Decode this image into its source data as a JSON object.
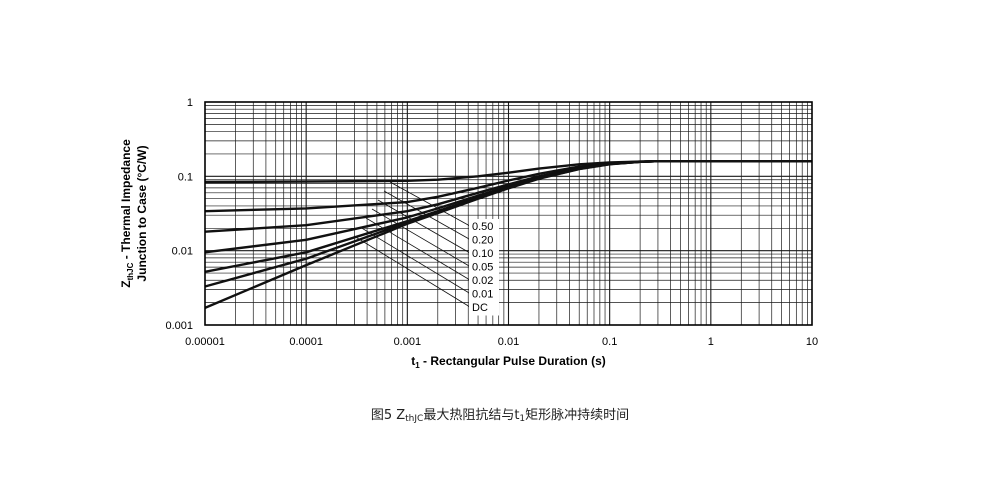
{
  "chart_data": {
    "type": "line",
    "title": "",
    "x_scale": "log",
    "y_scale": "log",
    "xlim": [
      1e-05,
      10
    ],
    "ylim": [
      0.001,
      1
    ],
    "xlabel": {
      "prefix": "t",
      "sub": "1",
      "suffix": " - Rectangular Pulse Duration (s)"
    },
    "ylabel_line1": {
      "prefix": "Z",
      "sub": "thJC",
      "suffix": " - Thermal Impedance"
    },
    "ylabel_line2": "Junction to Case (°C/W)",
    "x_ticks": [
      {
        "value": 1e-05,
        "label": "0.00001"
      },
      {
        "value": 0.0001,
        "label": "0.0001"
      },
      {
        "value": 0.001,
        "label": "0.001"
      },
      {
        "value": 0.01,
        "label": "0.01"
      },
      {
        "value": 0.1,
        "label": "0.1"
      },
      {
        "value": 1,
        "label": "1"
      },
      {
        "value": 10,
        "label": "10"
      }
    ],
    "y_ticks": [
      {
        "value": 0.001,
        "label": "0.001"
      },
      {
        "value": 0.01,
        "label": "0.01"
      },
      {
        "value": 0.1,
        "label": "0.1"
      },
      {
        "value": 1,
        "label": "1"
      }
    ],
    "grid": true,
    "legend_placement": "center",
    "series": [
      {
        "name": "0.50",
        "x": [
          1e-05,
          0.0001,
          0.001,
          0.002,
          0.005,
          0.01,
          0.02,
          0.05,
          0.1,
          0.2,
          0.3,
          1,
          10
        ],
        "y": [
          0.084,
          0.085,
          0.087,
          0.09,
          0.1,
          0.112,
          0.127,
          0.145,
          0.154,
          0.158,
          0.16,
          0.16,
          0.16
        ]
      },
      {
        "name": "0.20",
        "x": [
          1e-05,
          0.0001,
          0.001,
          0.002,
          0.005,
          0.01,
          0.02,
          0.05,
          0.1,
          0.2,
          0.3,
          1,
          10
        ],
        "y": [
          0.034,
          0.037,
          0.045,
          0.053,
          0.07,
          0.088,
          0.108,
          0.135,
          0.15,
          0.158,
          0.16,
          0.16,
          0.16
        ]
      },
      {
        "name": "0.10",
        "x": [
          1e-05,
          0.0001,
          0.001,
          0.002,
          0.005,
          0.01,
          0.02,
          0.05,
          0.1,
          0.2,
          0.3,
          1,
          10
        ],
        "y": [
          0.018,
          0.022,
          0.034,
          0.042,
          0.06,
          0.078,
          0.1,
          0.13,
          0.148,
          0.157,
          0.16,
          0.16,
          0.16
        ]
      },
      {
        "name": "0.05",
        "x": [
          1e-05,
          0.0001,
          0.001,
          0.002,
          0.005,
          0.01,
          0.02,
          0.05,
          0.1,
          0.2,
          0.3,
          1,
          10
        ],
        "y": [
          0.0095,
          0.014,
          0.028,
          0.037,
          0.055,
          0.074,
          0.097,
          0.128,
          0.147,
          0.157,
          0.16,
          0.16,
          0.16
        ]
      },
      {
        "name": "0.02",
        "x": [
          1e-05,
          0.0001,
          0.001,
          0.002,
          0.005,
          0.01,
          0.02,
          0.05,
          0.1,
          0.2,
          0.3,
          1,
          10
        ],
        "y": [
          0.0052,
          0.0095,
          0.025,
          0.034,
          0.052,
          0.071,
          0.095,
          0.127,
          0.146,
          0.157,
          0.16,
          0.16,
          0.16
        ]
      },
      {
        "name": "0.01",
        "x": [
          1e-05,
          0.0001,
          0.001,
          0.002,
          0.005,
          0.01,
          0.02,
          0.05,
          0.1,
          0.2,
          0.3,
          1,
          10
        ],
        "y": [
          0.0033,
          0.0078,
          0.024,
          0.033,
          0.051,
          0.07,
          0.094,
          0.126,
          0.146,
          0.157,
          0.16,
          0.16,
          0.16
        ]
      },
      {
        "name": "DC",
        "x": [
          1e-05,
          0.0001,
          0.001,
          0.002,
          0.005,
          0.01,
          0.02,
          0.05,
          0.1,
          0.2,
          0.3,
          1,
          10
        ],
        "y": [
          0.0017,
          0.0064,
          0.023,
          0.032,
          0.05,
          0.069,
          0.093,
          0.125,
          0.145,
          0.157,
          0.16,
          0.16,
          0.16
        ]
      }
    ]
  },
  "caption": {
    "prefix": "图5 Z",
    "sub": "thJC",
    "middle": "最大热阻抗结与t",
    "sub2": "1",
    "suffix": "矩形脉冲持续时间"
  },
  "colors": {
    "curve": "#111111",
    "grid": "#1a1a1a",
    "frame": "#000000"
  }
}
